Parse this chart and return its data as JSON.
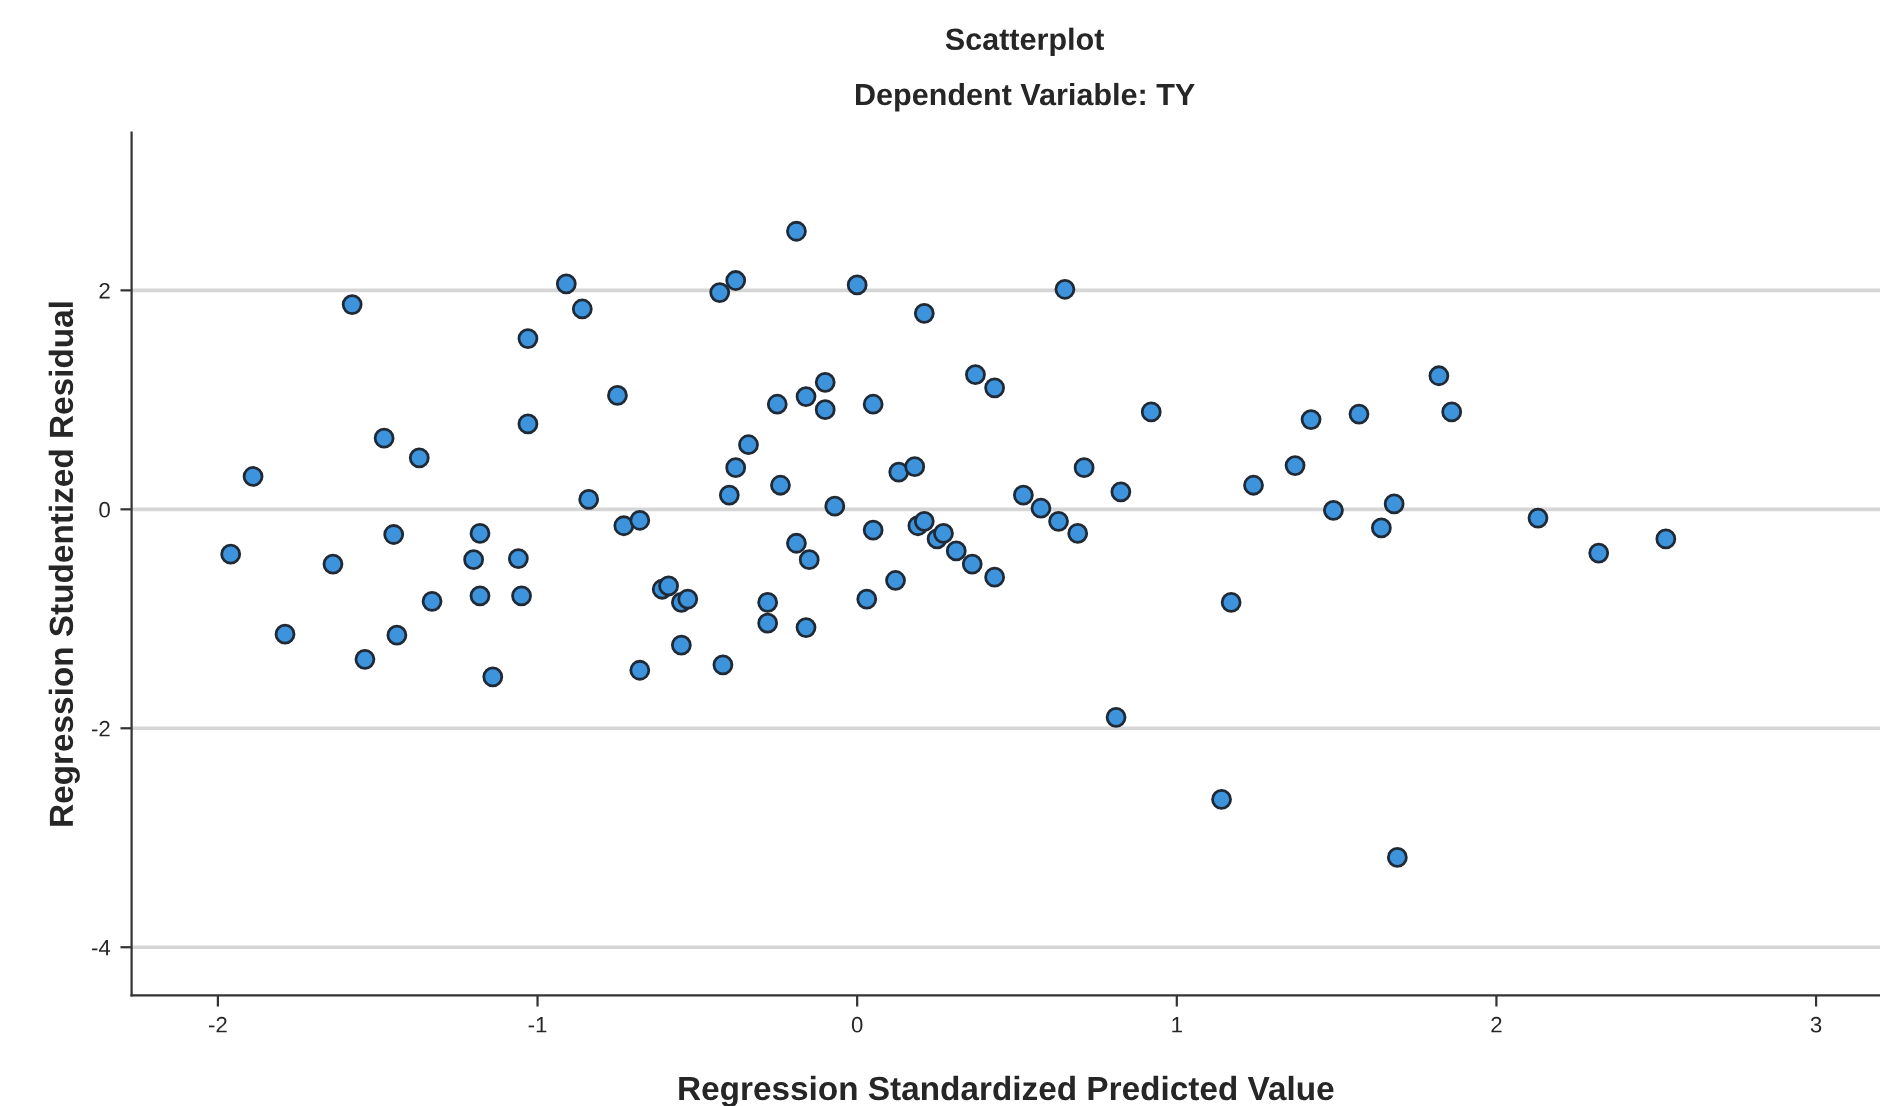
{
  "chart_data": {
    "type": "scatter",
    "title": "Scatterplot",
    "subtitle": "Dependent Variable: TY",
    "xlabel": "Regression Standardized Predicted Value",
    "ylabel": "Regression Studentized Residual",
    "xlim": [
      -2.27,
      3.2
    ],
    "ylim": [
      -4.44,
      3.44
    ],
    "xticks": [
      -2,
      -1,
      0,
      1,
      2,
      3
    ],
    "yticks": [
      -4,
      -2,
      0,
      2
    ],
    "grid": "y",
    "marker": "circle",
    "legend": false,
    "series": [
      {
        "color": "#3d94dc",
        "x": [
          -1.58,
          -0.91,
          -0.86,
          -0.43,
          -1.03,
          -0.75,
          -1.03,
          -1.48,
          -1.37,
          -1.89,
          -0.84,
          -0.73,
          -0.68,
          -1.45,
          -1.18,
          -1.96,
          -1.64,
          -1.2,
          -1.06,
          -1.33,
          -1.18,
          -1.05,
          -0.61,
          -0.59,
          -0.55,
          -0.53,
          -1.79,
          -1.44,
          -1.54,
          -1.14,
          -0.68,
          -0.55,
          -0.42,
          -0.19,
          -0.38,
          0.0,
          0.65,
          0.21,
          0.37,
          0.43,
          -0.1,
          -0.25,
          -0.16,
          -0.1,
          0.05,
          0.92,
          -0.34,
          -0.38,
          -0.4,
          -0.24,
          0.13,
          0.18,
          0.71,
          0.825,
          1.24,
          1.37,
          -0.07,
          0.52,
          0.575,
          0.63,
          0.69,
          0.05,
          0.19,
          0.21,
          0.25,
          0.27,
          0.31,
          0.36,
          0.43,
          -0.19,
          -0.15,
          0.12,
          0.03,
          -0.28,
          -0.28,
          -0.16,
          1.17,
          0.81,
          1.82,
          1.86,
          1.42,
          1.57,
          1.49,
          1.68,
          1.64,
          2.13,
          2.32,
          2.53,
          1.69,
          1.14
        ],
        "values": [
          1.87,
          2.06,
          1.83,
          1.98,
          1.56,
          1.04,
          0.78,
          0.65,
          0.47,
          0.3,
          0.09,
          -0.15,
          -0.1,
          -0.23,
          -0.22,
          -0.41,
          -0.5,
          -0.46,
          -0.45,
          -0.84,
          -0.79,
          -0.79,
          -0.73,
          -0.7,
          -0.85,
          -0.82,
          -1.14,
          -1.15,
          -1.37,
          -1.53,
          -1.47,
          -1.24,
          -1.42,
          2.54,
          2.09,
          2.05,
          2.01,
          1.79,
          1.23,
          1.11,
          1.16,
          0.96,
          1.03,
          0.91,
          0.96,
          0.89,
          0.59,
          0.38,
          0.13,
          0.22,
          0.34,
          0.39,
          0.38,
          0.16,
          0.22,
          0.4,
          0.03,
          0.13,
          0.01,
          -0.11,
          -0.22,
          -0.19,
          -0.15,
          -0.11,
          -0.27,
          -0.22,
          -0.38,
          -0.5,
          -0.62,
          -0.31,
          -0.46,
          -0.65,
          -0.82,
          -0.85,
          -1.04,
          -1.08,
          -0.85,
          -1.9,
          1.22,
          0.89,
          0.82,
          0.87,
          -0.01,
          0.05,
          -0.17,
          -0.08,
          -0.4,
          -0.27,
          -3.18,
          -2.65
        ]
      }
    ]
  }
}
